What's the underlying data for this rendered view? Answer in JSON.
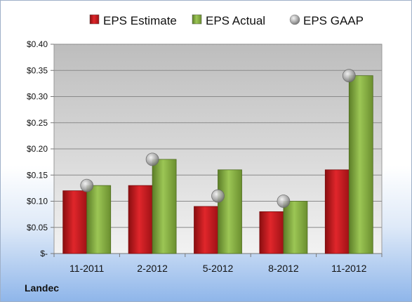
{
  "company": "Landec",
  "colors": {
    "estimate": "#c0151b",
    "actual": "#7ea43a",
    "gaap": "#a0a0a0"
  },
  "chart_data": {
    "type": "bar",
    "categories": [
      "11-2011",
      "2-2012",
      "5-2012",
      "8-2012",
      "11-2012"
    ],
    "series": [
      {
        "name": "EPS Estimate",
        "values": [
          0.12,
          0.13,
          0.09,
          0.08,
          0.16
        ]
      },
      {
        "name": "EPS Actual",
        "values": [
          0.13,
          0.18,
          0.16,
          0.1,
          0.34
        ]
      },
      {
        "name": "EPS GAAP",
        "type": "scatter",
        "values": [
          0.13,
          0.18,
          0.11,
          0.1,
          0.34
        ]
      }
    ],
    "yticks": [
      "$-",
      "$0.05",
      "$0.10",
      "$0.15",
      "$0.20",
      "$0.25",
      "$0.30",
      "$0.35",
      "$0.40"
    ],
    "ylim": [
      0,
      0.4
    ],
    "grid": true,
    "legend": "top"
  }
}
